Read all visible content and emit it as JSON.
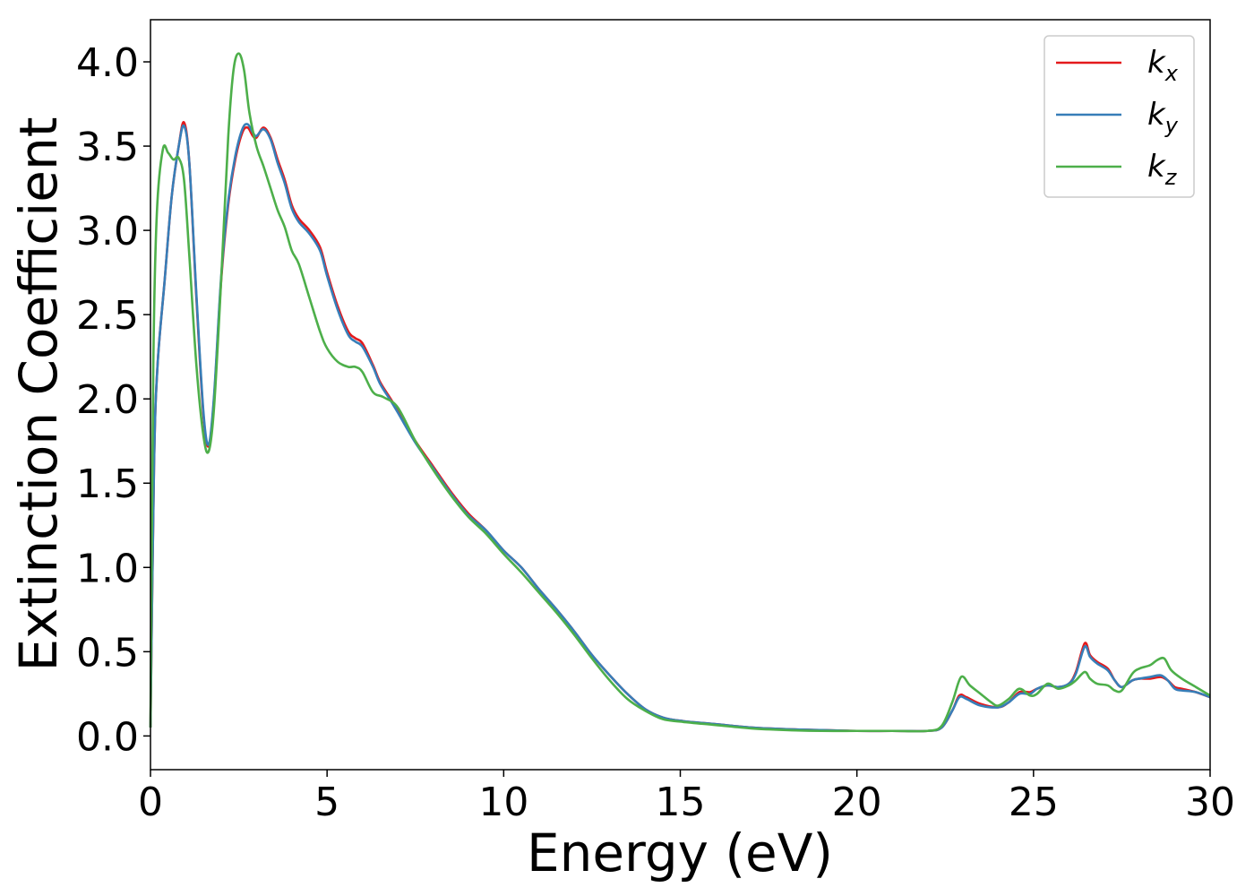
{
  "chart_data": {
    "type": "line",
    "title": "",
    "xlabel": "Energy (eV)",
    "ylabel": "Extinction Coefficient",
    "xlim": [
      0,
      30
    ],
    "ylim": [
      -0.2,
      4.25
    ],
    "xticks": [
      0,
      5,
      10,
      15,
      20,
      25,
      30
    ],
    "xtick_labels": [
      "0",
      "5",
      "10",
      "15",
      "20",
      "25",
      "30"
    ],
    "yticks": [
      0.0,
      0.5,
      1.0,
      1.5,
      2.0,
      2.5,
      3.0,
      3.5,
      4.0
    ],
    "ytick_labels": [
      "0.0",
      "0.5",
      "1.0",
      "1.5",
      "2.0",
      "2.5",
      "3.0",
      "3.5",
      "4.0"
    ],
    "grid": false,
    "legend": {
      "position": "top-right",
      "entries": [
        {
          "base": "k",
          "sub": "x"
        },
        {
          "base": "k",
          "sub": "y"
        },
        {
          "base": "k",
          "sub": "z"
        }
      ]
    },
    "series": [
      {
        "color": "#e41a1c",
        "points": [
          [
            0,
            0.05
          ],
          [
            0.1,
            1.6
          ],
          [
            0.2,
            2.2
          ],
          [
            0.4,
            2.7
          ],
          [
            0.6,
            3.2
          ],
          [
            0.8,
            3.5
          ],
          [
            0.95,
            3.64
          ],
          [
            1.1,
            3.4
          ],
          [
            1.3,
            2.6
          ],
          [
            1.5,
            1.9
          ],
          [
            1.65,
            1.72
          ],
          [
            1.8,
            2.0
          ],
          [
            2.0,
            2.7
          ],
          [
            2.2,
            3.15
          ],
          [
            2.4,
            3.42
          ],
          [
            2.6,
            3.58
          ],
          [
            2.75,
            3.61
          ],
          [
            2.9,
            3.56
          ],
          [
            3.0,
            3.55
          ],
          [
            3.2,
            3.61
          ],
          [
            3.4,
            3.55
          ],
          [
            3.6,
            3.42
          ],
          [
            3.8,
            3.3
          ],
          [
            4.0,
            3.15
          ],
          [
            4.2,
            3.07
          ],
          [
            4.5,
            3.0
          ],
          [
            4.8,
            2.9
          ],
          [
            5.0,
            2.75
          ],
          [
            5.3,
            2.55
          ],
          [
            5.6,
            2.4
          ],
          [
            5.8,
            2.36
          ],
          [
            6.0,
            2.33
          ],
          [
            6.3,
            2.2
          ],
          [
            6.5,
            2.1
          ],
          [
            6.8,
            2.0
          ],
          [
            7.0,
            1.93
          ],
          [
            7.5,
            1.75
          ],
          [
            8.0,
            1.6
          ],
          [
            8.5,
            1.45
          ],
          [
            9.0,
            1.32
          ],
          [
            9.5,
            1.22
          ],
          [
            10.0,
            1.1
          ],
          [
            10.5,
            1.0
          ],
          [
            11.0,
            0.87
          ],
          [
            11.5,
            0.75
          ],
          [
            12.0,
            0.62
          ],
          [
            12.5,
            0.48
          ],
          [
            13.0,
            0.36
          ],
          [
            13.5,
            0.25
          ],
          [
            14.0,
            0.16
          ],
          [
            14.5,
            0.11
          ],
          [
            15.0,
            0.09
          ],
          [
            16.0,
            0.07
          ],
          [
            17.0,
            0.05
          ],
          [
            18.0,
            0.04
          ],
          [
            19.0,
            0.035
          ],
          [
            20.0,
            0.03
          ],
          [
            21.0,
            0.03
          ],
          [
            22.0,
            0.03
          ],
          [
            22.4,
            0.05
          ],
          [
            22.7,
            0.15
          ],
          [
            22.9,
            0.24
          ],
          [
            23.1,
            0.23
          ],
          [
            23.5,
            0.19
          ],
          [
            24.0,
            0.17
          ],
          [
            24.3,
            0.2
          ],
          [
            24.6,
            0.26
          ],
          [
            24.9,
            0.26
          ],
          [
            25.1,
            0.28
          ],
          [
            25.4,
            0.3
          ],
          [
            25.7,
            0.29
          ],
          [
            26.0,
            0.31
          ],
          [
            26.2,
            0.38
          ],
          [
            26.45,
            0.55
          ],
          [
            26.6,
            0.48
          ],
          [
            26.8,
            0.44
          ],
          [
            27.1,
            0.4
          ],
          [
            27.3,
            0.33
          ],
          [
            27.5,
            0.29
          ],
          [
            27.8,
            0.33
          ],
          [
            28.0,
            0.34
          ],
          [
            28.3,
            0.34
          ],
          [
            28.6,
            0.35
          ],
          [
            28.8,
            0.33
          ],
          [
            29.0,
            0.29
          ],
          [
            29.2,
            0.28
          ],
          [
            29.6,
            0.26
          ],
          [
            30.0,
            0.23
          ]
        ]
      },
      {
        "color": "#377eb8",
        "points": [
          [
            0,
            0.05
          ],
          [
            0.1,
            1.6
          ],
          [
            0.2,
            2.2
          ],
          [
            0.4,
            2.7
          ],
          [
            0.6,
            3.2
          ],
          [
            0.8,
            3.5
          ],
          [
            0.95,
            3.62
          ],
          [
            1.1,
            3.4
          ],
          [
            1.3,
            2.62
          ],
          [
            1.5,
            1.92
          ],
          [
            1.65,
            1.73
          ],
          [
            1.8,
            2.02
          ],
          [
            2.0,
            2.72
          ],
          [
            2.2,
            3.17
          ],
          [
            2.4,
            3.44
          ],
          [
            2.6,
            3.6
          ],
          [
            2.75,
            3.63
          ],
          [
            2.9,
            3.58
          ],
          [
            3.0,
            3.56
          ],
          [
            3.2,
            3.6
          ],
          [
            3.4,
            3.54
          ],
          [
            3.6,
            3.4
          ],
          [
            3.8,
            3.28
          ],
          [
            4.0,
            3.13
          ],
          [
            4.2,
            3.05
          ],
          [
            4.5,
            2.98
          ],
          [
            4.8,
            2.88
          ],
          [
            5.0,
            2.73
          ],
          [
            5.3,
            2.53
          ],
          [
            5.6,
            2.38
          ],
          [
            5.8,
            2.34
          ],
          [
            6.0,
            2.31
          ],
          [
            6.3,
            2.19
          ],
          [
            6.5,
            2.09
          ],
          [
            6.8,
            1.99
          ],
          [
            7.0,
            1.92
          ],
          [
            7.5,
            1.74
          ],
          [
            8.0,
            1.59
          ],
          [
            8.5,
            1.44
          ],
          [
            9.0,
            1.31
          ],
          [
            9.5,
            1.22
          ],
          [
            10.0,
            1.1
          ],
          [
            10.5,
            1.0
          ],
          [
            11.0,
            0.87
          ],
          [
            11.5,
            0.75
          ],
          [
            12.0,
            0.62
          ],
          [
            12.5,
            0.48
          ],
          [
            13.0,
            0.36
          ],
          [
            13.5,
            0.25
          ],
          [
            14.0,
            0.16
          ],
          [
            14.5,
            0.11
          ],
          [
            15.0,
            0.09
          ],
          [
            16.0,
            0.07
          ],
          [
            17.0,
            0.05
          ],
          [
            18.0,
            0.04
          ],
          [
            19.0,
            0.035
          ],
          [
            20.0,
            0.03
          ],
          [
            21.0,
            0.03
          ],
          [
            22.0,
            0.03
          ],
          [
            22.4,
            0.05
          ],
          [
            22.7,
            0.15
          ],
          [
            22.9,
            0.23
          ],
          [
            23.1,
            0.22
          ],
          [
            23.5,
            0.18
          ],
          [
            24.0,
            0.17
          ],
          [
            24.3,
            0.2
          ],
          [
            24.6,
            0.25
          ],
          [
            24.9,
            0.25
          ],
          [
            25.1,
            0.28
          ],
          [
            25.4,
            0.3
          ],
          [
            25.7,
            0.29
          ],
          [
            26.0,
            0.31
          ],
          [
            26.2,
            0.37
          ],
          [
            26.45,
            0.53
          ],
          [
            26.6,
            0.47
          ],
          [
            26.8,
            0.43
          ],
          [
            27.1,
            0.39
          ],
          [
            27.3,
            0.33
          ],
          [
            27.5,
            0.29
          ],
          [
            27.8,
            0.33
          ],
          [
            28.0,
            0.34
          ],
          [
            28.3,
            0.35
          ],
          [
            28.6,
            0.36
          ],
          [
            28.8,
            0.33
          ],
          [
            29.0,
            0.28
          ],
          [
            29.2,
            0.27
          ],
          [
            29.6,
            0.26
          ],
          [
            30.0,
            0.23
          ]
        ]
      },
      {
        "color": "#4daf4a",
        "points": [
          [
            0,
            0.05
          ],
          [
            0.08,
            2.2
          ],
          [
            0.18,
            3.1
          ],
          [
            0.35,
            3.48
          ],
          [
            0.5,
            3.46
          ],
          [
            0.65,
            3.42
          ],
          [
            0.8,
            3.43
          ],
          [
            0.95,
            3.3
          ],
          [
            1.1,
            2.85
          ],
          [
            1.3,
            2.2
          ],
          [
            1.5,
            1.78
          ],
          [
            1.65,
            1.69
          ],
          [
            1.8,
            1.95
          ],
          [
            2.0,
            2.7
          ],
          [
            2.2,
            3.55
          ],
          [
            2.35,
            3.95
          ],
          [
            2.5,
            4.05
          ],
          [
            2.65,
            3.95
          ],
          [
            2.8,
            3.7
          ],
          [
            3.0,
            3.5
          ],
          [
            3.2,
            3.38
          ],
          [
            3.4,
            3.25
          ],
          [
            3.6,
            3.12
          ],
          [
            3.8,
            3.02
          ],
          [
            4.0,
            2.88
          ],
          [
            4.2,
            2.8
          ],
          [
            4.5,
            2.6
          ],
          [
            4.8,
            2.4
          ],
          [
            5.0,
            2.3
          ],
          [
            5.3,
            2.22
          ],
          [
            5.6,
            2.19
          ],
          [
            5.8,
            2.19
          ],
          [
            6.0,
            2.16
          ],
          [
            6.3,
            2.04
          ],
          [
            6.6,
            2.01
          ],
          [
            7.0,
            1.95
          ],
          [
            7.5,
            1.75
          ],
          [
            8.0,
            1.58
          ],
          [
            8.5,
            1.43
          ],
          [
            9.0,
            1.3
          ],
          [
            9.5,
            1.2
          ],
          [
            10.0,
            1.08
          ],
          [
            10.5,
            0.97
          ],
          [
            11.0,
            0.85
          ],
          [
            11.5,
            0.73
          ],
          [
            12.0,
            0.6
          ],
          [
            12.5,
            0.46
          ],
          [
            13.0,
            0.33
          ],
          [
            13.5,
            0.22
          ],
          [
            14.0,
            0.15
          ],
          [
            14.5,
            0.1
          ],
          [
            15.0,
            0.085
          ],
          [
            16.0,
            0.065
          ],
          [
            17.0,
            0.045
          ],
          [
            18.0,
            0.035
          ],
          [
            19.0,
            0.03
          ],
          [
            20.0,
            0.03
          ],
          [
            21.0,
            0.03
          ],
          [
            22.0,
            0.03
          ],
          [
            22.4,
            0.06
          ],
          [
            22.7,
            0.2
          ],
          [
            22.95,
            0.35
          ],
          [
            23.2,
            0.3
          ],
          [
            23.5,
            0.25
          ],
          [
            23.8,
            0.2
          ],
          [
            24.0,
            0.18
          ],
          [
            24.3,
            0.22
          ],
          [
            24.6,
            0.28
          ],
          [
            24.9,
            0.24
          ],
          [
            25.1,
            0.25
          ],
          [
            25.4,
            0.31
          ],
          [
            25.7,
            0.28
          ],
          [
            26.0,
            0.3
          ],
          [
            26.2,
            0.33
          ],
          [
            26.45,
            0.38
          ],
          [
            26.6,
            0.34
          ],
          [
            26.8,
            0.31
          ],
          [
            27.1,
            0.3
          ],
          [
            27.3,
            0.27
          ],
          [
            27.5,
            0.27
          ],
          [
            27.8,
            0.37
          ],
          [
            28.0,
            0.4
          ],
          [
            28.3,
            0.42
          ],
          [
            28.5,
            0.45
          ],
          [
            28.7,
            0.46
          ],
          [
            28.9,
            0.39
          ],
          [
            29.2,
            0.34
          ],
          [
            29.6,
            0.29
          ],
          [
            30.0,
            0.24
          ]
        ]
      }
    ]
  }
}
